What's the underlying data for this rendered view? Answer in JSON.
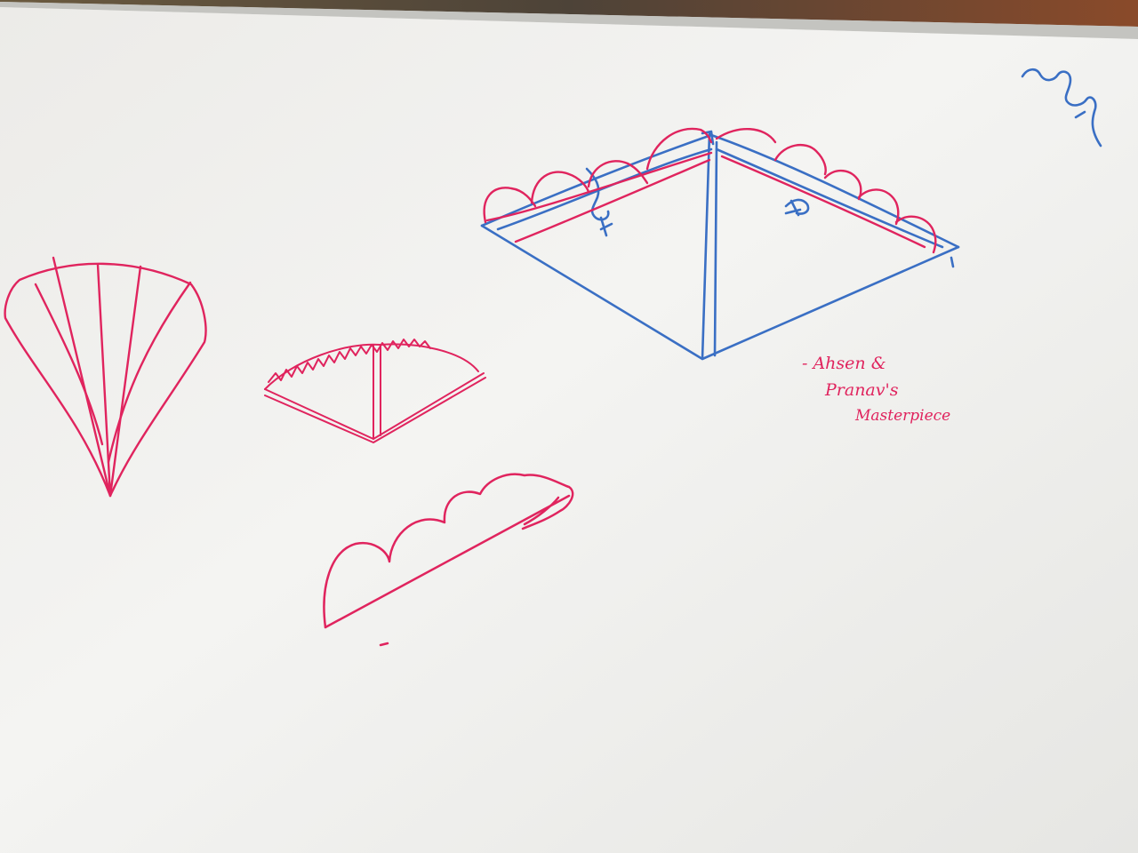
{
  "scene": {
    "description_colors": {
      "board": "#f1f1ef",
      "red_marker": "#e0245e",
      "blue_marker": "#3a6fc4",
      "frame": "#b9b9b5"
    }
  },
  "caption": {
    "line1": "- Ahsen &",
    "line2": "Pranav's",
    "line3": "Masterpiece"
  }
}
